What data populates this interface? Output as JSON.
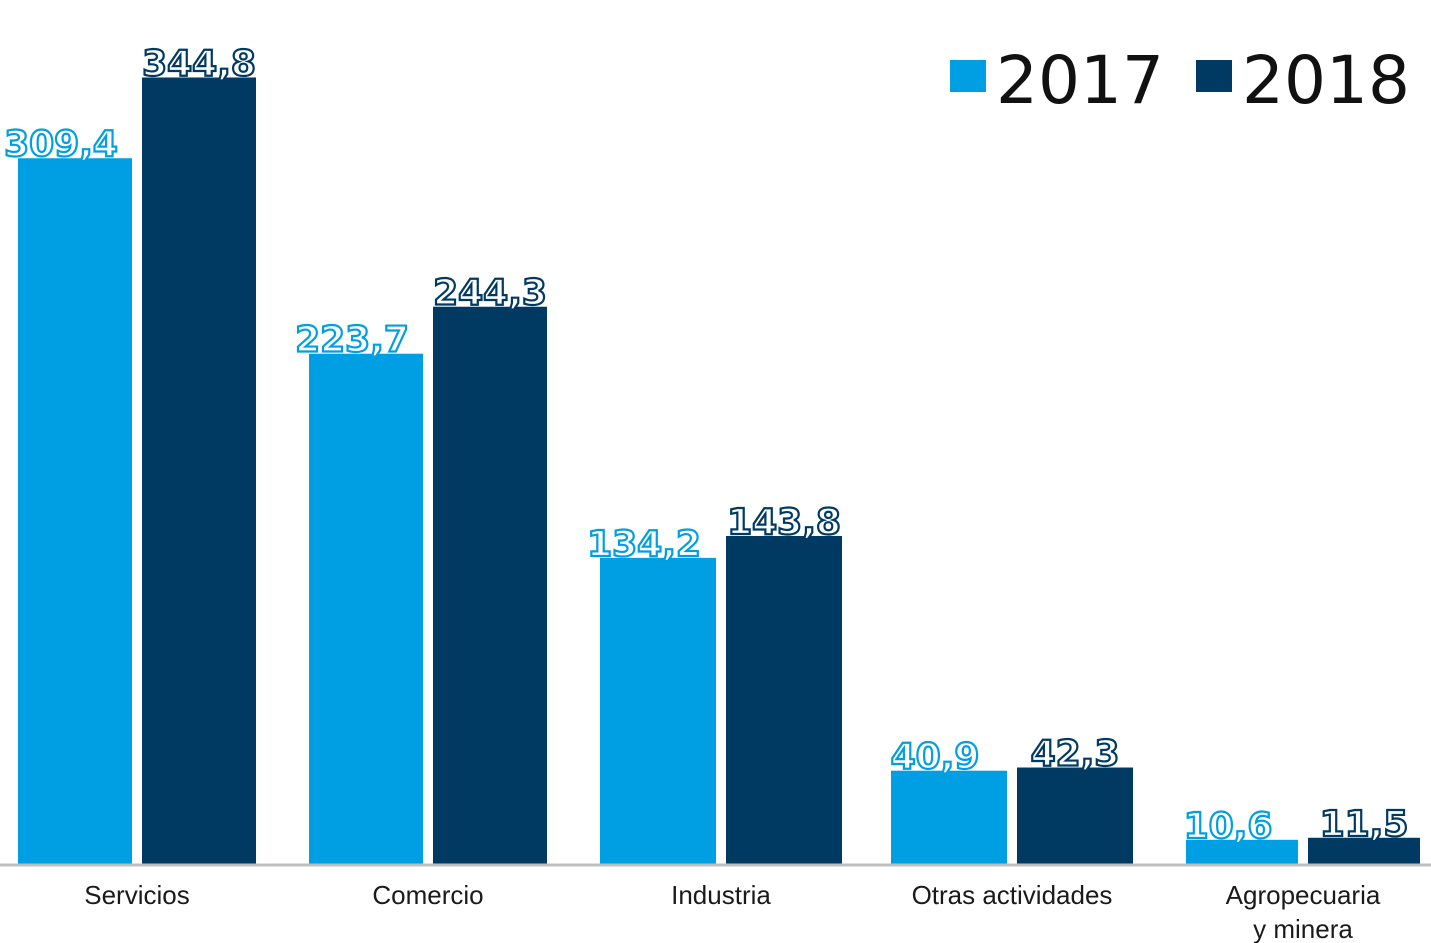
{
  "chart_data": {
    "type": "bar",
    "categories": [
      [
        "Servicios"
      ],
      [
        "Comercio"
      ],
      [
        "Industria"
      ],
      [
        "Otras actividades"
      ],
      [
        "Agropecuaria",
        "y minera"
      ]
    ],
    "series": [
      {
        "name": "2017",
        "color": "#009FE3",
        "values": [
          309.4,
          223.7,
          134.2,
          40.9,
          10.6
        ],
        "labels": [
          "309,4",
          "223,7",
          "134,2",
          "40,9",
          "10,6"
        ]
      },
      {
        "name": "2018",
        "color": "#003A63",
        "values": [
          344.8,
          244.3,
          143.8,
          42.3,
          11.5
        ],
        "labels": [
          "344,8",
          "244,3",
          "143,8",
          "42,3",
          "11,5"
        ]
      }
    ],
    "ylim": [
      0,
      370
    ],
    "grid": false,
    "legend_position": "top-right",
    "baseline_color": "#BFBFBF"
  }
}
